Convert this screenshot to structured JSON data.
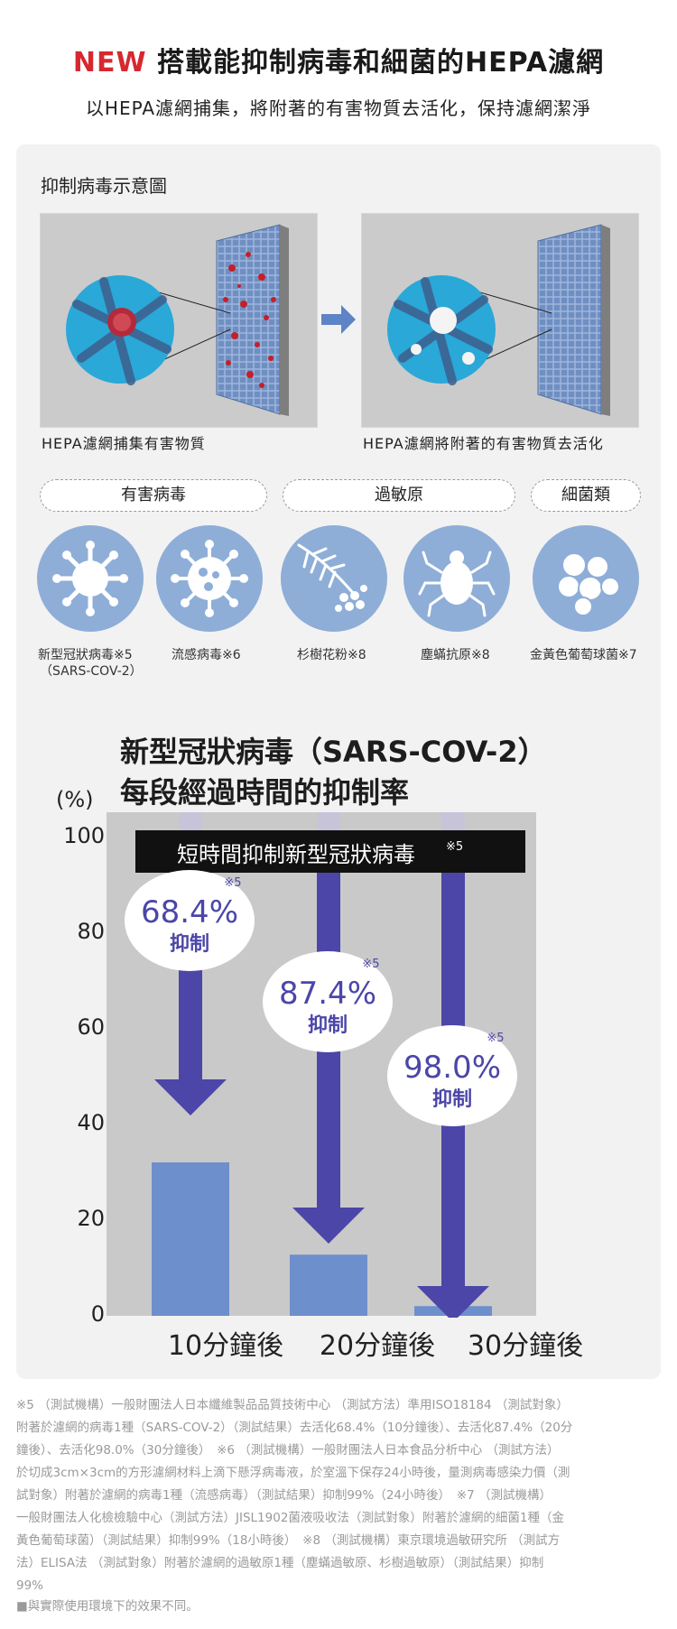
{
  "header": {
    "new_label": "NEW",
    "title": "搭載能抑制病毒和細菌的HEPA濾網",
    "subtitle": "以HEPA濾網捕集，將附著的有害物質去活化，保持濾網潔淨"
  },
  "diagram": {
    "title": "抑制病毒示意圖",
    "left_caption": "HEPA濾網捕集有害物質",
    "right_caption": "HEPA濾網將附著的有害物質去活化"
  },
  "categories": [
    {
      "label": "有害病毒"
    },
    {
      "label": "過敏原"
    },
    {
      "label": "細菌類"
    }
  ],
  "targets": [
    {
      "icon": "coronavirus-icon",
      "label": "新型冠狀病毒※5",
      "label2": "（SARS-COV-2）"
    },
    {
      "icon": "influenza-virus-icon",
      "label": "流感病毒※6"
    },
    {
      "icon": "cedar-pollen-icon",
      "label": "杉樹花粉※8"
    },
    {
      "icon": "dust-mite-icon",
      "label": "塵蟎抗原※8"
    },
    {
      "icon": "staphylococcus-icon",
      "label": "金黃色葡萄球菌※7"
    }
  ],
  "chart_data": {
    "type": "bar",
    "title_line1": "新型冠狀病毒（SARS-COV-2）",
    "title_line2": "每段經過時間的抑制率",
    "ylabel": "(%)",
    "ylim": [
      0,
      100
    ],
    "yticks": [
      "100",
      "80",
      "60",
      "40",
      "20",
      "0"
    ],
    "categories": [
      "10分鐘後",
      "20分鐘後",
      "30分鐘後"
    ],
    "values": [
      31.6,
      12.6,
      2.0
    ],
    "callouts": [
      {
        "value": "68.4%",
        "label": "抑制",
        "note": "※5"
      },
      {
        "value": "87.4%",
        "label": "抑制",
        "note": "※5"
      },
      {
        "value": "98.0%",
        "label": "抑制",
        "note": "※5"
      }
    ],
    "banner": "短時間抑制新型冠狀病毒",
    "banner_note": "※5",
    "colors": {
      "bar": "#6d8fcc",
      "arrow": "#4b46a8",
      "plot_bg": "#c9c9c9"
    }
  },
  "footnotes": {
    "lines": [
      "※5 （測試機構）一般財團法人日本纖維製品品質技術中心 （測試方法）準用ISO18184 （測試對象）",
      "附著於濾網的病毒1種（SARS-COV-2）（測試結果）去活化68.4%（10分鐘後）、去活化87.4%（20分",
      "鐘後）、去活化98.0%（30分鐘後）　※6 （測試機構）一般財團法人日本食品分析中心 （測試方法）",
      "於切成3cm×3cm的方形濾網材料上滴下懸浮病毒液，於室溫下保存24小時後，量測病毒感染力價（測",
      "試對象）附著於濾網的病毒1種（流感病毒）（測試結果）抑制99%（24小時後）　※7 （測試機構）",
      "一般財團法人化檢檢驗中心（測試方法）JISL1902菌液吸收法（測試對象）附著於濾網的細菌1種（金",
      "黃色葡萄球菌）（測試結果）抑制99%（18小時後）　※8 （測試機構）東京環境過敏研究所 （測試方",
      "法）ELISA法 （測試對象）附著於濾網的過敏原1種（塵蟎過敏原、杉樹過敏原）（測試結果）抑制",
      "99%",
      "■與實際使用環境下的效果不同。"
    ]
  }
}
